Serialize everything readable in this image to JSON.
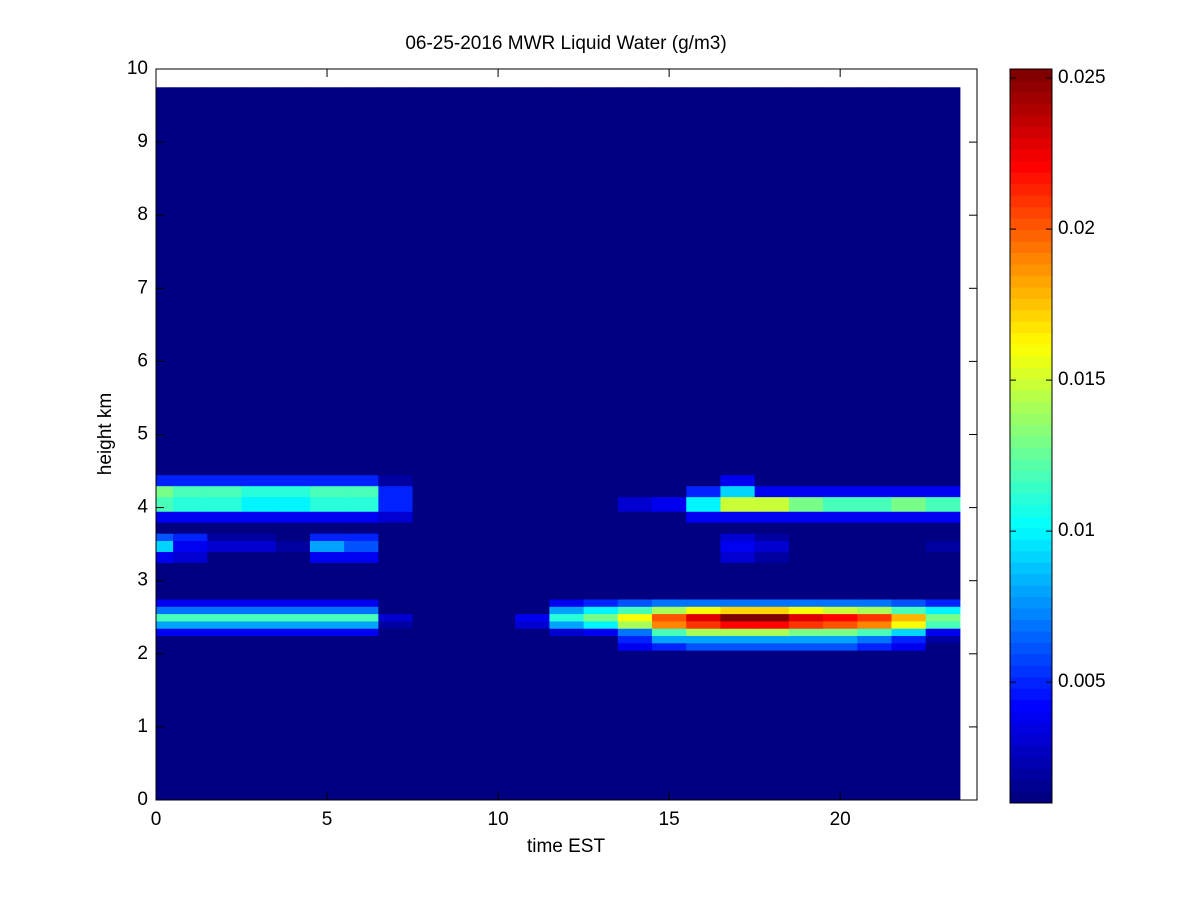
{
  "chart_data": {
    "type": "heatmap",
    "title": "06-25-2016 MWR Liquid Water (g/m3)",
    "xlabel": "time EST",
    "ylabel": "height km",
    "colormap": "jet",
    "x_edges": [
      0,
      0.5,
      1.5,
      2.5,
      3.5,
      4.5,
      5.5,
      6.5,
      7.5,
      8.5,
      9.5,
      10.5,
      11.5,
      12.5,
      13.5,
      14.5,
      15.5,
      16.5,
      17.5,
      18.5,
      19.5,
      20.5,
      21.5,
      22.5,
      23.5
    ],
    "y_edges": [
      0,
      2.05,
      2.15,
      2.25,
      2.35,
      2.45,
      2.55,
      2.65,
      2.75,
      3.25,
      3.4,
      3.55,
      3.65,
      3.8,
      3.95,
      4.15,
      4.3,
      4.45,
      9.75
    ],
    "z": [
      [
        0.001,
        0.001,
        0.001,
        0.001,
        0.001,
        0.001,
        0.001,
        0.001,
        0.001,
        0.001,
        0.001,
        0.001,
        0.001,
        0.001,
        0.001,
        0.001,
        0.001,
        0.001,
        0.001,
        0.001,
        0.001,
        0.001,
        0.001,
        0.001
      ],
      [
        0.001,
        0.001,
        0.001,
        0.001,
        0.001,
        0.001,
        0.001,
        0.001,
        0.001,
        0.001,
        0.001,
        0.001,
        0.001,
        0.001,
        0.004,
        0.005,
        0.006,
        0.006,
        0.006,
        0.006,
        0.006,
        0.005,
        0.004,
        0.001
      ],
      [
        0.001,
        0.001,
        0.001,
        0.001,
        0.001,
        0.001,
        0.001,
        0.001,
        0.001,
        0.001,
        0.001,
        0.001,
        0.001,
        0.001,
        0.005,
        0.008,
        0.008,
        0.008,
        0.008,
        0.008,
        0.008,
        0.007,
        0.005,
        0.002
      ],
      [
        0.004,
        0.004,
        0.004,
        0.004,
        0.004,
        0.004,
        0.004,
        0.001,
        0.001,
        0.001,
        0.001,
        0.001,
        0.003,
        0.004,
        0.007,
        0.012,
        0.014,
        0.014,
        0.014,
        0.013,
        0.013,
        0.012,
        0.009,
        0.004
      ],
      [
        0.008,
        0.008,
        0.008,
        0.008,
        0.008,
        0.008,
        0.008,
        0.002,
        0.001,
        0.001,
        0.001,
        0.003,
        0.008,
        0.01,
        0.014,
        0.019,
        0.021,
        0.022,
        0.022,
        0.021,
        0.02,
        0.019,
        0.016,
        0.012
      ],
      [
        0.012,
        0.012,
        0.012,
        0.012,
        0.012,
        0.012,
        0.012,
        0.003,
        0.001,
        0.001,
        0.001,
        0.004,
        0.011,
        0.013,
        0.016,
        0.02,
        0.023,
        0.025,
        0.025,
        0.023,
        0.022,
        0.021,
        0.018,
        0.013
      ],
      [
        0.007,
        0.007,
        0.007,
        0.007,
        0.007,
        0.007,
        0.007,
        0.001,
        0.001,
        0.001,
        0.001,
        0.001,
        0.008,
        0.01,
        0.012,
        0.014,
        0.016,
        0.017,
        0.017,
        0.016,
        0.015,
        0.014,
        0.012,
        0.01
      ],
      [
        0.004,
        0.004,
        0.004,
        0.004,
        0.004,
        0.004,
        0.004,
        0.001,
        0.001,
        0.001,
        0.001,
        0.001,
        0.004,
        0.005,
        0.006,
        0.007,
        0.007,
        0.007,
        0.007,
        0.007,
        0.007,
        0.007,
        0.006,
        0.005
      ],
      [
        0.001,
        0.001,
        0.001,
        0.001,
        0.001,
        0.001,
        0.001,
        0.001,
        0.001,
        0.001,
        0.001,
        0.001,
        0.001,
        0.001,
        0.001,
        0.001,
        0.001,
        0.001,
        0.001,
        0.001,
        0.001,
        0.001,
        0.001,
        0.001
      ],
      [
        0.004,
        0.003,
        0.001,
        0.001,
        0.001,
        0.004,
        0.004,
        0.001,
        0.001,
        0.001,
        0.001,
        0.001,
        0.001,
        0.001,
        0.001,
        0.001,
        0.001,
        0.003,
        0.002,
        0.001,
        0.001,
        0.001,
        0.001,
        0.001
      ],
      [
        0.009,
        0.004,
        0.003,
        0.003,
        0.002,
        0.008,
        0.006,
        0.001,
        0.001,
        0.001,
        0.001,
        0.001,
        0.001,
        0.001,
        0.001,
        0.001,
        0.001,
        0.004,
        0.003,
        0.001,
        0.001,
        0.001,
        0.001,
        0.002
      ],
      [
        0.006,
        0.005,
        0.002,
        0.002,
        0.001,
        0.005,
        0.005,
        0.001,
        0.001,
        0.001,
        0.001,
        0.001,
        0.001,
        0.001,
        0.001,
        0.001,
        0.001,
        0.003,
        0.002,
        0.001,
        0.001,
        0.001,
        0.001,
        0.001
      ],
      [
        0.001,
        0.001,
        0.001,
        0.001,
        0.001,
        0.001,
        0.001,
        0.001,
        0.001,
        0.001,
        0.001,
        0.001,
        0.001,
        0.001,
        0.001,
        0.001,
        0.001,
        0.001,
        0.001,
        0.001,
        0.001,
        0.001,
        0.001,
        0.001
      ],
      [
        0.004,
        0.004,
        0.004,
        0.004,
        0.004,
        0.004,
        0.004,
        0.003,
        0.001,
        0.001,
        0.001,
        0.001,
        0.001,
        0.001,
        0.001,
        0.001,
        0.004,
        0.004,
        0.004,
        0.004,
        0.004,
        0.004,
        0.004,
        0.004
      ],
      [
        0.012,
        0.011,
        0.011,
        0.01,
        0.01,
        0.011,
        0.011,
        0.005,
        0.001,
        0.001,
        0.001,
        0.001,
        0.001,
        0.001,
        0.003,
        0.004,
        0.01,
        0.015,
        0.015,
        0.013,
        0.012,
        0.012,
        0.013,
        0.012
      ],
      [
        0.013,
        0.012,
        0.012,
        0.011,
        0.011,
        0.012,
        0.012,
        0.005,
        0.001,
        0.001,
        0.001,
        0.001,
        0.001,
        0.001,
        0.001,
        0.001,
        0.005,
        0.009,
        0.004,
        0.004,
        0.004,
        0.004,
        0.004,
        0.004
      ],
      [
        0.005,
        0.005,
        0.005,
        0.005,
        0.005,
        0.005,
        0.005,
        0.002,
        0.001,
        0.001,
        0.001,
        0.001,
        0.001,
        0.001,
        0.001,
        0.001,
        0.001,
        0.004,
        0.001,
        0.001,
        0.001,
        0.001,
        0.001,
        0.001
      ],
      [
        0.001,
        0.001,
        0.001,
        0.001,
        0.001,
        0.001,
        0.001,
        0.001,
        0.001,
        0.001,
        0.001,
        0.001,
        0.001,
        0.001,
        0.001,
        0.001,
        0.001,
        0.001,
        0.001,
        0.001,
        0.001,
        0.001,
        0.001,
        0.001
      ]
    ],
    "xlim": [
      0,
      24
    ],
    "xticks": [
      0,
      5,
      10,
      15,
      20
    ],
    "ylim": [
      0,
      10
    ],
    "yticks": [
      0,
      1,
      2,
      3,
      4,
      5,
      6,
      7,
      8,
      9,
      10
    ],
    "colorbar": {
      "clim": [
        0.001,
        0.0253
      ],
      "ticks": [
        0.005,
        0.01,
        0.015,
        0.02,
        0.025
      ]
    }
  }
}
